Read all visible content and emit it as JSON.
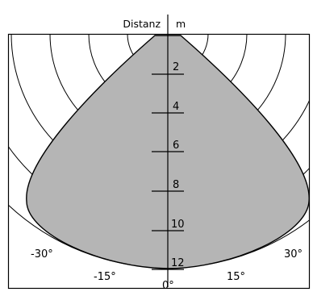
{
  "header": {
    "label": "Distanz",
    "unit": "m"
  },
  "distance_labels": [
    "2",
    "4",
    "6",
    "8",
    "10",
    "12"
  ],
  "angle_labels": {
    "neg30": "-30°",
    "neg15": "-15°",
    "zero": "0°",
    "pos15": "15°",
    "pos30": "30°"
  },
  "colors": {
    "coverage_fill": "#b5b5b5",
    "line": "#000000"
  }
}
